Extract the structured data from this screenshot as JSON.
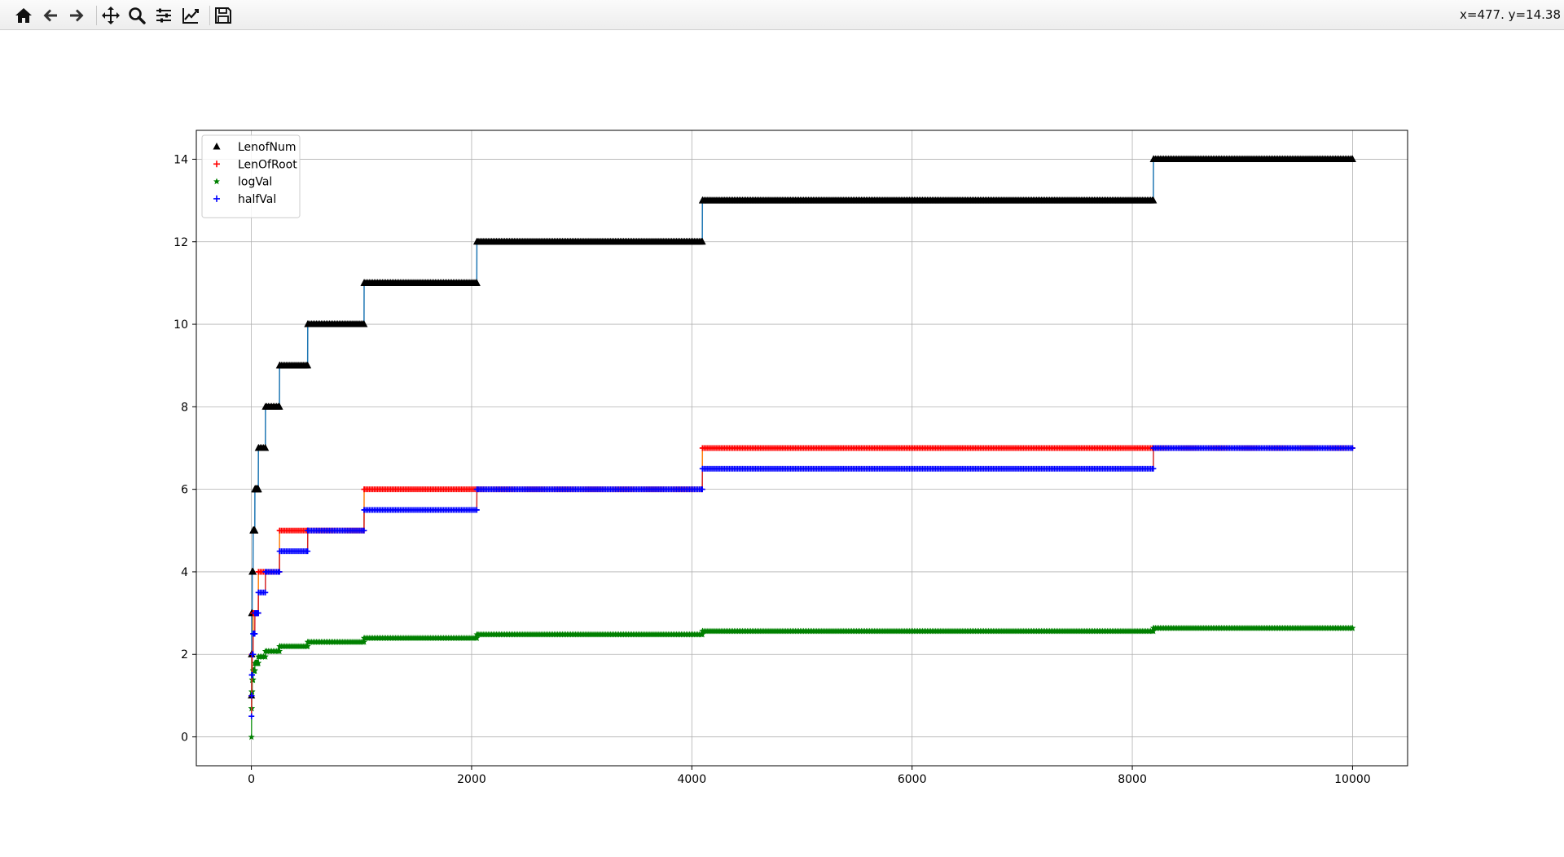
{
  "toolbar": {
    "buttons": [
      {
        "name": "home-button",
        "icon": "home-icon"
      },
      {
        "name": "back-button",
        "icon": "arrow-left-icon"
      },
      {
        "name": "forward-button",
        "icon": "arrow-right-icon"
      },
      {
        "name": "pan-button",
        "icon": "move-icon"
      },
      {
        "name": "zoom-button",
        "icon": "magnifier-icon"
      },
      {
        "name": "configure-subplots-button",
        "icon": "sliders-icon"
      },
      {
        "name": "edit-axis-button",
        "icon": "line-chart-icon"
      },
      {
        "name": "save-button",
        "icon": "floppy-disk-icon"
      }
    ],
    "coords": "x=477. y=14.38"
  },
  "chart_data": {
    "type": "scatter",
    "xlim": [
      -500,
      10500
    ],
    "ylim": [
      -0.7,
      14.7
    ],
    "xticks": [
      0,
      2000,
      4000,
      6000,
      8000,
      10000
    ],
    "yticks": [
      0,
      2,
      4,
      6,
      8,
      10,
      12,
      14
    ],
    "grid": true,
    "legend_position": "top-left",
    "x_max": 10000,
    "series": [
      {
        "name": "LenofNum",
        "marker": "triangle-up",
        "color": "#000000",
        "line_color": "#1f77b4",
        "rule": "bit_length"
      },
      {
        "name": "LenOfRoot",
        "marker": "plus",
        "color": "#ff0000",
        "line_color": "#ff7f0e",
        "rule": "ceil_half_bit_length"
      },
      {
        "name": "logVal",
        "marker": "star",
        "color": "#008000",
        "line_color": "#2ca02c",
        "rule": "log_bit_length"
      },
      {
        "name": "halfVal",
        "marker": "plus",
        "color": "#0000ff",
        "line_color": "#d62728",
        "rule": "half_bit_length"
      }
    ]
  }
}
